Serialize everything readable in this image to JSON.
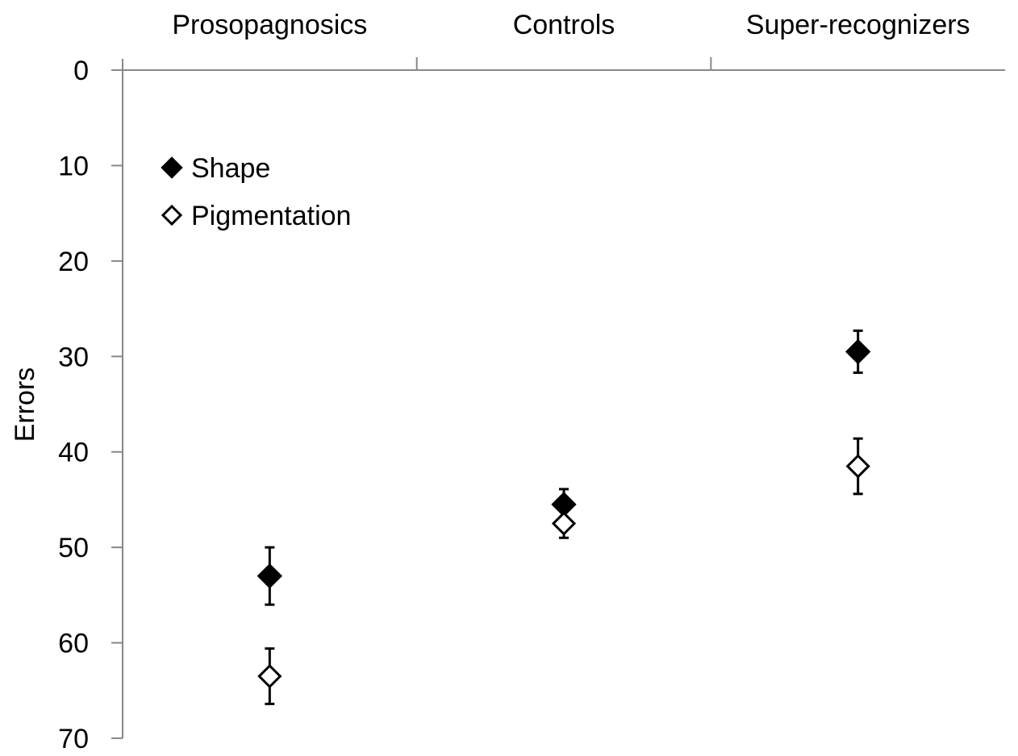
{
  "chart_data": {
    "type": "scatter",
    "title": "",
    "xlabel": "",
    "ylabel": "Errors",
    "categories": [
      "Prosopagnosics",
      "Controls",
      "Super-recognizers"
    ],
    "y_ticks": [
      "0",
      "10",
      "20",
      "30",
      "40",
      "50",
      "60",
      "70"
    ],
    "ylim": [
      0,
      70
    ],
    "y_inverted": true,
    "x_axis_position": "top",
    "grid": false,
    "legend_position": "top-left",
    "series": [
      {
        "name": "Shape",
        "marker": "filled-diamond",
        "color": "#000000",
        "values": [
          53,
          45.5,
          29.5
        ],
        "error": [
          3,
          1.6,
          2.2
        ]
      },
      {
        "name": "Pigmentation",
        "marker": "open-diamond",
        "color": "#000000",
        "values": [
          63.5,
          47.5,
          41.5
        ],
        "error": [
          2.9,
          1.5,
          2.9
        ]
      }
    ]
  }
}
